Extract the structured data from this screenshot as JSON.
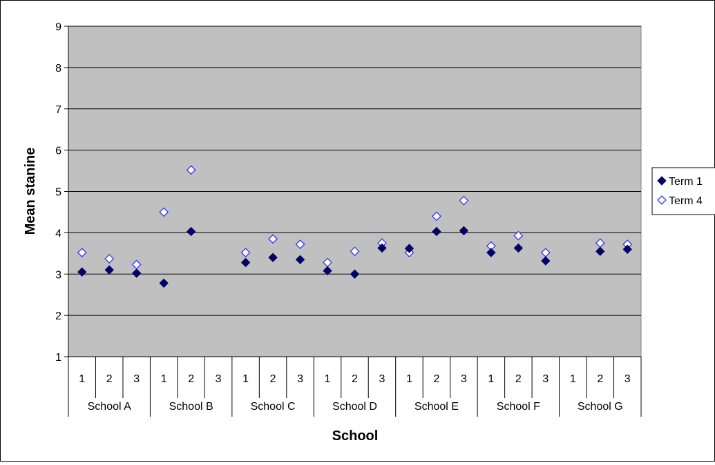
{
  "chart_data": {
    "type": "scatter",
    "title": "",
    "xlabel": "School",
    "ylabel": "Mean stanine",
    "ylim": [
      1,
      9
    ],
    "yticks": [
      1,
      2,
      3,
      4,
      5,
      6,
      7,
      8,
      9
    ],
    "grid": true,
    "legend_position": "right",
    "groups": [
      {
        "name": "School A",
        "subs": [
          "1",
          "2",
          "3"
        ]
      },
      {
        "name": "School B",
        "subs": [
          "1",
          "2",
          "3"
        ]
      },
      {
        "name": "School C",
        "subs": [
          "1",
          "2",
          "3"
        ]
      },
      {
        "name": "School D",
        "subs": [
          "1",
          "2",
          "3"
        ]
      },
      {
        "name": "School E",
        "subs": [
          "1",
          "2",
          "3"
        ]
      },
      {
        "name": "School F",
        "subs": [
          "1",
          "2",
          "3"
        ]
      },
      {
        "name": "School G",
        "subs": [
          "1",
          "2",
          "3"
        ]
      }
    ],
    "series": [
      {
        "name": "Term 1",
        "color": "#000066",
        "marker": "filled-diamond",
        "values": [
          3.05,
          3.1,
          3.02,
          2.78,
          4.03,
          null,
          3.28,
          3.4,
          3.35,
          3.08,
          3.0,
          3.63,
          3.62,
          4.03,
          4.05,
          3.52,
          3.63,
          3.32,
          null,
          3.55,
          3.6
        ]
      },
      {
        "name": "Term 4",
        "color": "#3333FF",
        "marker": "hollow-diamond",
        "values": [
          3.52,
          3.37,
          3.23,
          4.5,
          5.52,
          null,
          3.52,
          3.85,
          3.72,
          3.28,
          3.55,
          3.75,
          3.52,
          4.4,
          4.78,
          3.68,
          3.93,
          3.52,
          null,
          3.75,
          3.72
        ]
      }
    ]
  }
}
